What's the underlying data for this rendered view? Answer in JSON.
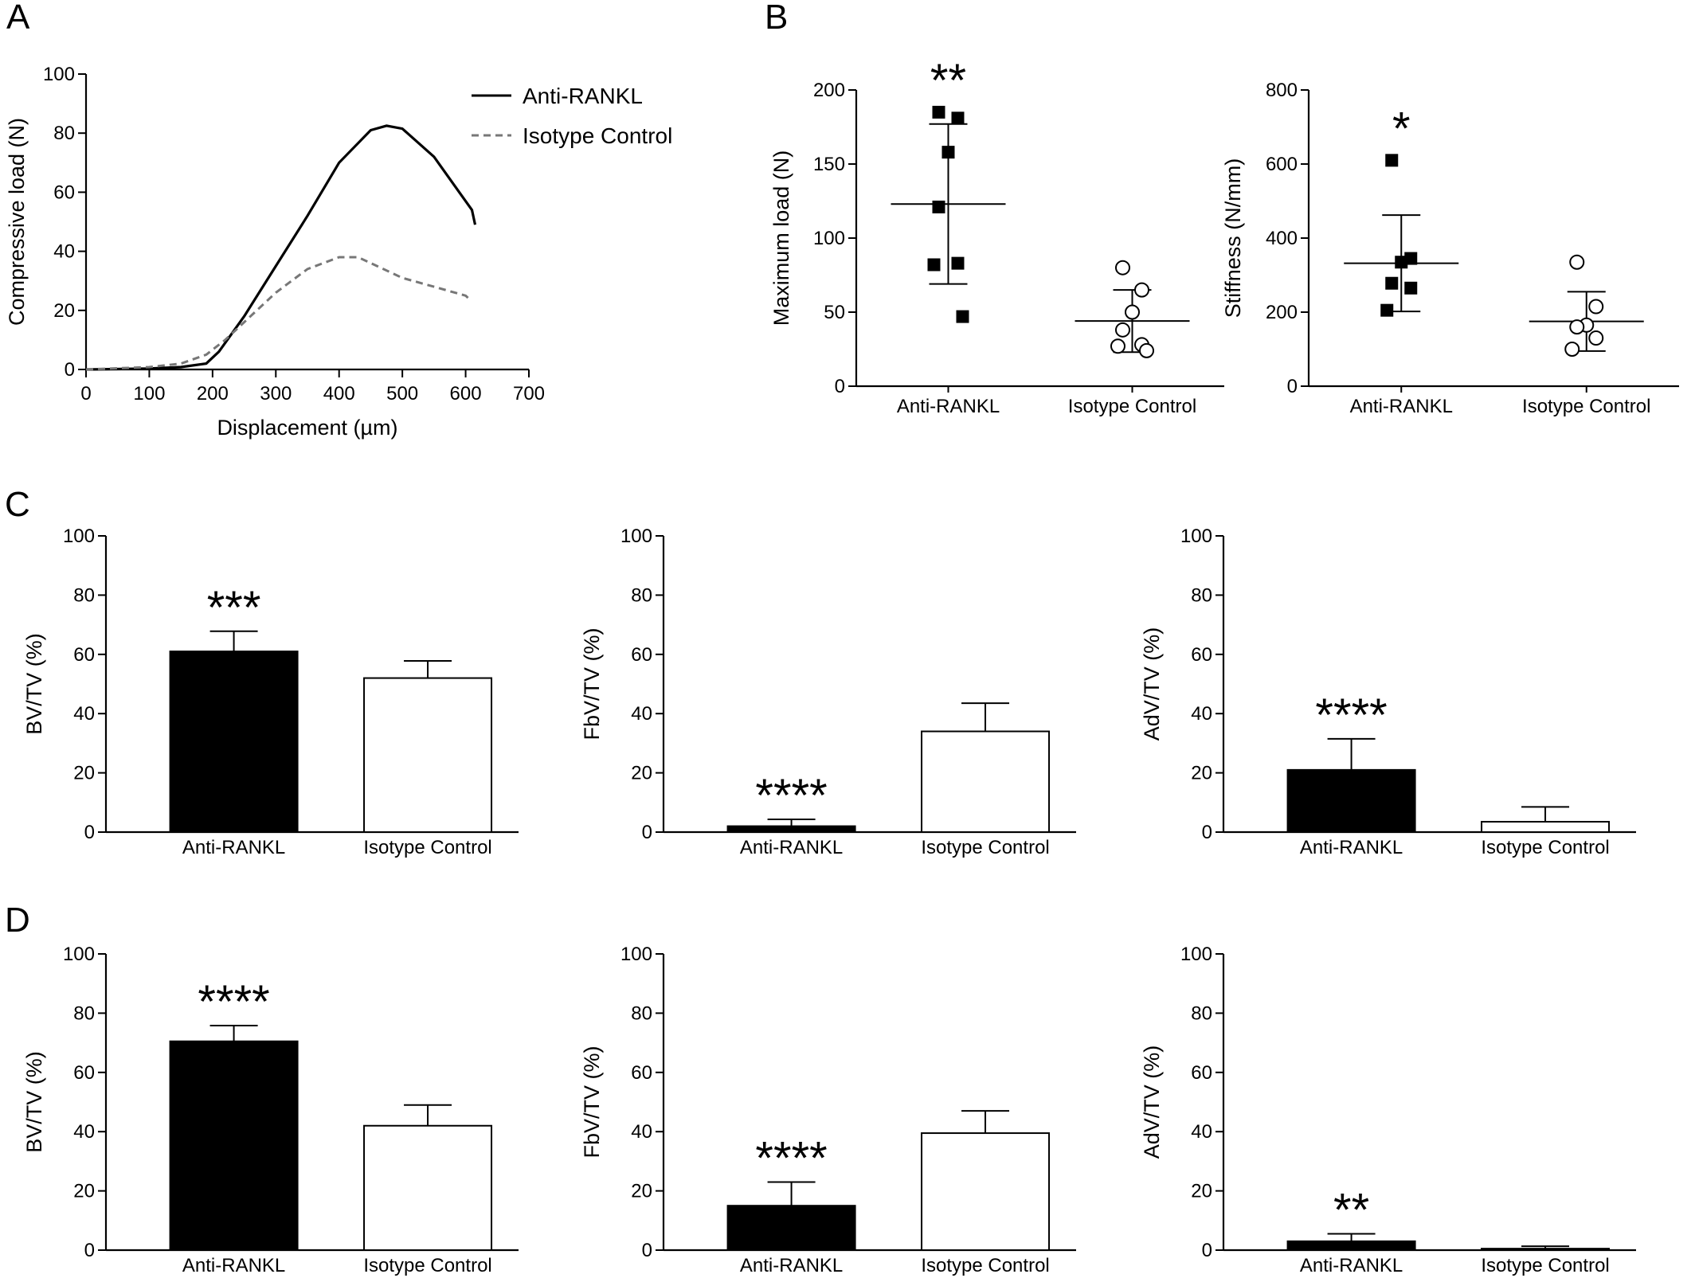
{
  "panels": [
    {
      "id": "A",
      "label": "A"
    },
    {
      "id": "B",
      "label": "B"
    },
    {
      "id": "C",
      "label": "C"
    },
    {
      "id": "D",
      "label": "D"
    }
  ],
  "colors": {
    "anti_rankl": "#000000",
    "isotype_control": "#777777",
    "open_marker": "#ffffff"
  },
  "chart_data": [
    {
      "id": "A",
      "type": "line",
      "xlabel": "Displacement (µm)",
      "ylabel": "Compressive load (N)",
      "xlim": [
        0,
        700
      ],
      "ylim": [
        0,
        100
      ],
      "xticks": [
        0,
        100,
        200,
        300,
        400,
        500,
        600,
        700
      ],
      "yticks": [
        0,
        20,
        40,
        60,
        80,
        100
      ],
      "legend": "top-right",
      "series": [
        {
          "name": "Anti-RANKL",
          "style": "solid",
          "color": "#000000",
          "x": [
            0,
            100,
            150,
            190,
            210,
            250,
            300,
            350,
            400,
            450,
            475,
            500,
            550,
            590,
            610,
            615
          ],
          "y": [
            0,
            0.3,
            0.8,
            2,
            6,
            18,
            35,
            52,
            70,
            81,
            82.5,
            81.5,
            72,
            60,
            54,
            49
          ]
        },
        {
          "name": "Isotype Control",
          "style": "dashed",
          "color": "#777777",
          "x": [
            0,
            100,
            150,
            190,
            220,
            260,
            300,
            350,
            400,
            430,
            460,
            500,
            550,
            600,
            605
          ],
          "y": [
            0,
            0.8,
            2,
            5,
            10,
            18,
            26,
            34,
            38,
            38,
            35,
            31,
            28,
            25,
            24
          ]
        }
      ]
    },
    {
      "id": "B1",
      "type": "scatter",
      "ylabel": "Maximum load (N)",
      "ylim": [
        0,
        200
      ],
      "yticks": [
        0,
        50,
        100,
        150,
        200
      ],
      "categories": [
        "Anti-RANKL",
        "Isotype Control"
      ],
      "series": [
        {
          "name": "Anti-RANKL",
          "marker": "filled-square",
          "points": [
            185,
            181,
            158,
            121,
            83,
            82,
            47
          ],
          "mean": 123,
          "sd_low": 69,
          "sd_high": 177,
          "significance": "**"
        },
        {
          "name": "Isotype Control",
          "marker": "open-circle",
          "points": [
            80,
            65,
            50,
            38,
            28,
            27,
            24
          ],
          "mean": 44,
          "sd_low": 23,
          "sd_high": 65,
          "significance": ""
        }
      ]
    },
    {
      "id": "B2",
      "type": "scatter",
      "ylabel": "Stiffness (N/mm)",
      "ylim": [
        0,
        800
      ],
      "yticks": [
        0,
        200,
        400,
        600,
        800
      ],
      "categories": [
        "Anti-RANKL",
        "Isotype Control"
      ],
      "series": [
        {
          "name": "Anti-RANKL",
          "marker": "filled-square",
          "points": [
            610,
            345,
            335,
            278,
            265,
            205
          ],
          "mean": 332,
          "sd_low": 202,
          "sd_high": 462,
          "significance": "*"
        },
        {
          "name": "Isotype Control",
          "marker": "open-circle",
          "points": [
            335,
            215,
            165,
            160,
            130,
            100
          ],
          "mean": 175,
          "sd_low": 95,
          "sd_high": 255,
          "significance": ""
        }
      ]
    },
    {
      "id": "C1",
      "type": "bar",
      "ylabel": "BV/TV (%)",
      "ylim": [
        0,
        100
      ],
      "yticks": [
        0,
        20,
        40,
        60,
        80,
        100
      ],
      "categories": [
        "Anti-RANKL",
        "Isotype Control"
      ],
      "values": [
        61,
        52
      ],
      "errors": [
        6.8,
        5.8
      ],
      "significance": [
        "***",
        ""
      ]
    },
    {
      "id": "C2",
      "type": "bar",
      "ylabel": "FbV/TV (%)",
      "ylim": [
        0,
        100
      ],
      "yticks": [
        0,
        20,
        40,
        60,
        80,
        100
      ],
      "categories": [
        "Anti-RANKL",
        "Isotype Control"
      ],
      "values": [
        2,
        34
      ],
      "errors": [
        2.3,
        9.5
      ],
      "significance": [
        "****",
        ""
      ]
    },
    {
      "id": "C3",
      "type": "bar",
      "ylabel": "AdV/TV (%)",
      "ylim": [
        0,
        100
      ],
      "yticks": [
        0,
        20,
        40,
        60,
        80,
        100
      ],
      "categories": [
        "Anti-RANKL",
        "Isotype Control"
      ],
      "values": [
        21,
        3.5
      ],
      "errors": [
        10.5,
        5
      ],
      "significance": [
        "****",
        ""
      ]
    },
    {
      "id": "D1",
      "type": "bar",
      "ylabel": "BV/TV (%)",
      "ylim": [
        0,
        100
      ],
      "yticks": [
        0,
        20,
        40,
        60,
        80,
        100
      ],
      "categories": [
        "Anti-RANKL",
        "Isotype Control"
      ],
      "values": [
        70.5,
        42
      ],
      "errors": [
        5.3,
        7
      ],
      "significance": [
        "****",
        ""
      ]
    },
    {
      "id": "D2",
      "type": "bar",
      "ylabel": "FbV/TV (%)",
      "ylim": [
        0,
        100
      ],
      "yticks": [
        0,
        20,
        40,
        60,
        80,
        100
      ],
      "categories": [
        "Anti-RANKL",
        "Isotype Control"
      ],
      "values": [
        15,
        39.5
      ],
      "errors": [
        8,
        7.5
      ],
      "significance": [
        "****",
        ""
      ]
    },
    {
      "id": "D3",
      "type": "bar",
      "ylabel": "AdV/TV (%)",
      "ylim": [
        0,
        100
      ],
      "yticks": [
        0,
        20,
        40,
        60,
        80,
        100
      ],
      "categories": [
        "Anti-RANKL",
        "Isotype Control"
      ],
      "values": [
        3,
        0.5
      ],
      "errors": [
        2.5,
        0.8
      ],
      "significance": [
        "**",
        ""
      ]
    }
  ]
}
